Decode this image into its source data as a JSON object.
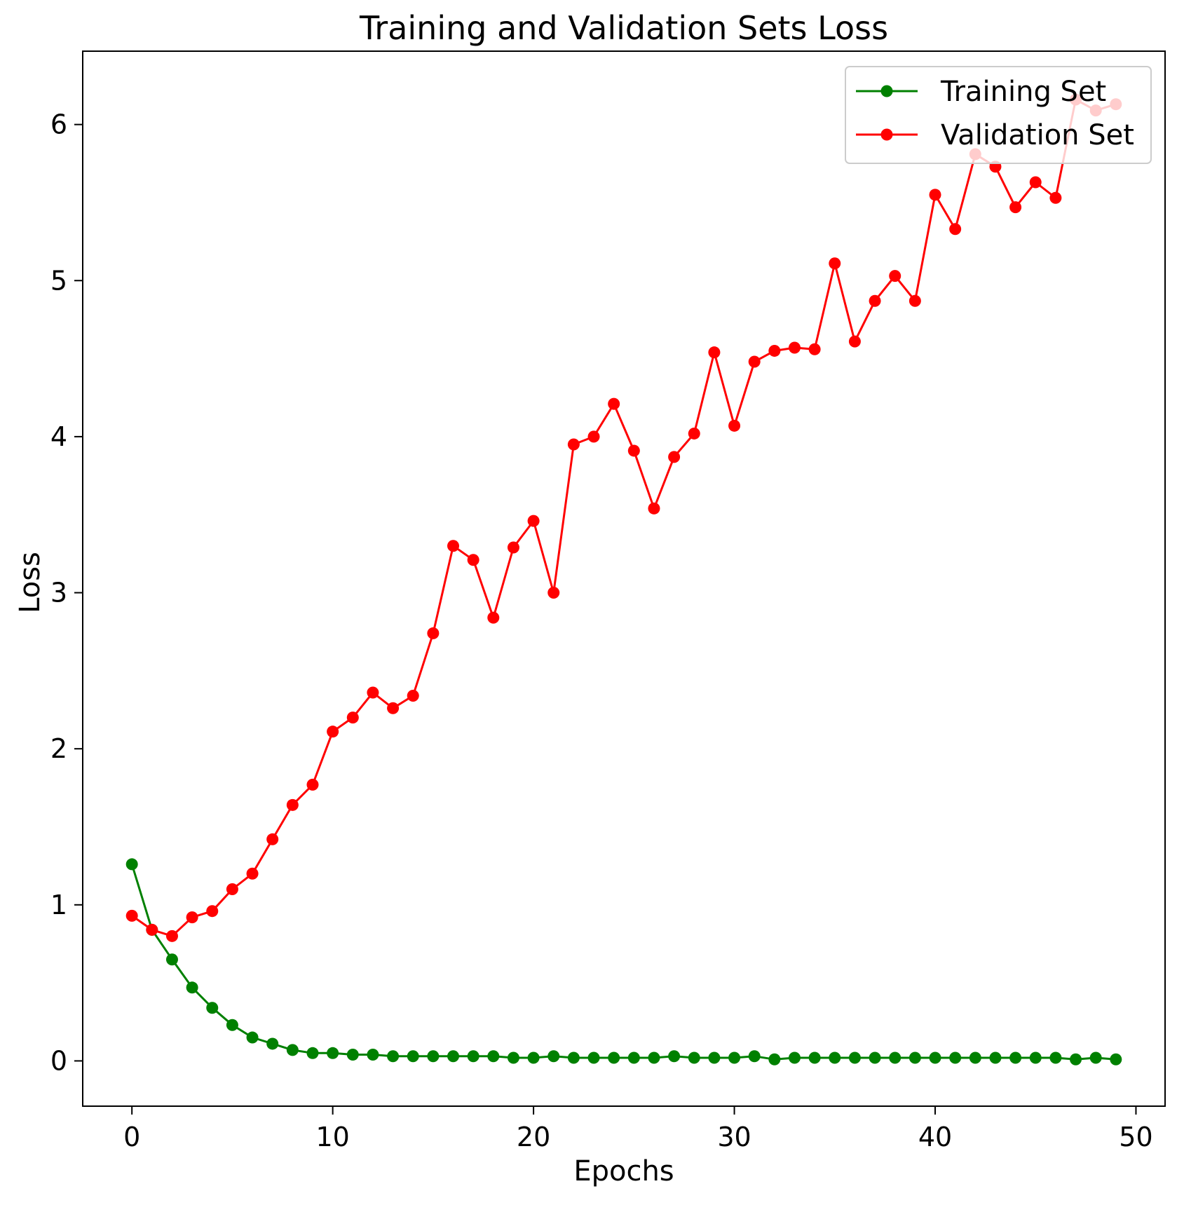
{
  "chart_data": {
    "type": "line",
    "title": "Training and Validation Sets Loss",
    "xlabel": "Epochs",
    "ylabel": "Loss",
    "xlim": [
      -2.45,
      51.45
    ],
    "ylim": [
      -0.29,
      6.47
    ],
    "x_ticks": [
      0,
      10,
      20,
      30,
      40,
      50
    ],
    "y_ticks": [
      0,
      1,
      2,
      3,
      4,
      5,
      6
    ],
    "grid": false,
    "legend_position": "top-right",
    "x": [
      0,
      1,
      2,
      3,
      4,
      5,
      6,
      7,
      8,
      9,
      10,
      11,
      12,
      13,
      14,
      15,
      16,
      17,
      18,
      19,
      20,
      21,
      22,
      23,
      24,
      25,
      26,
      27,
      28,
      29,
      30,
      31,
      32,
      33,
      34,
      35,
      36,
      37,
      38,
      39,
      40,
      41,
      42,
      43,
      44,
      45,
      46,
      47,
      48,
      49
    ],
    "series": [
      {
        "name": "Training Set",
        "color": "#008000",
        "marker": "circle",
        "values": [
          1.26,
          0.84,
          0.65,
          0.47,
          0.34,
          0.23,
          0.15,
          0.11,
          0.07,
          0.05,
          0.05,
          0.04,
          0.04,
          0.03,
          0.03,
          0.03,
          0.03,
          0.03,
          0.03,
          0.02,
          0.02,
          0.03,
          0.02,
          0.02,
          0.02,
          0.02,
          0.02,
          0.03,
          0.02,
          0.02,
          0.02,
          0.03,
          0.01,
          0.02,
          0.02,
          0.02,
          0.02,
          0.02,
          0.02,
          0.02,
          0.02,
          0.02,
          0.02,
          0.02,
          0.02,
          0.02,
          0.02,
          0.01,
          0.02,
          0.01
        ]
      },
      {
        "name": "Validation Set",
        "color": "#ff0000",
        "marker": "circle",
        "values": [
          0.93,
          0.84,
          0.8,
          0.92,
          0.96,
          1.1,
          1.2,
          1.42,
          1.64,
          1.77,
          2.11,
          2.2,
          2.36,
          2.26,
          2.34,
          2.74,
          3.3,
          3.21,
          2.84,
          3.29,
          3.46,
          3.0,
          3.95,
          4.0,
          4.21,
          3.91,
          3.54,
          3.87,
          4.02,
          4.54,
          4.07,
          4.48,
          4.55,
          4.57,
          4.56,
          5.11,
          4.61,
          4.87,
          5.03,
          4.87,
          5.55,
          5.33,
          5.81,
          5.73,
          5.47,
          5.63,
          5.53,
          6.16,
          6.09,
          6.13
        ]
      }
    ]
  }
}
